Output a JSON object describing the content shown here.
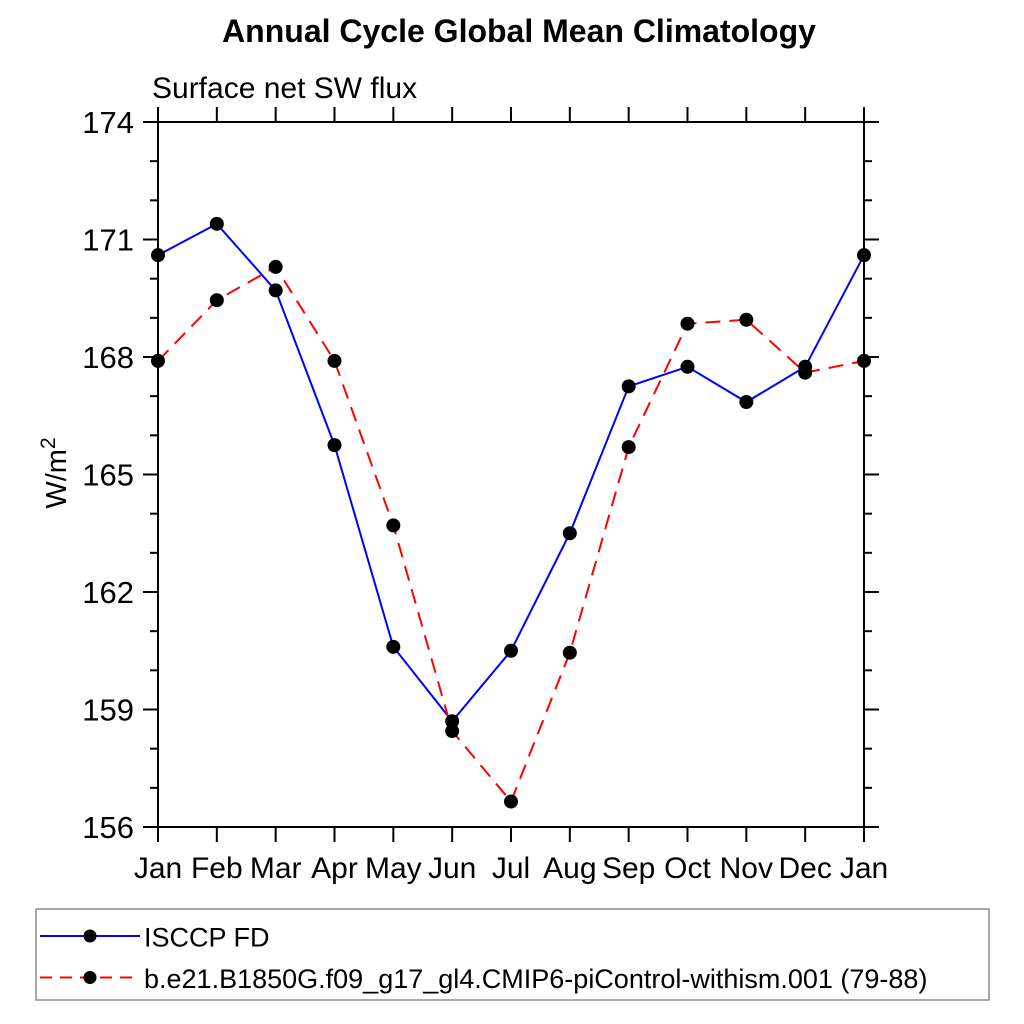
{
  "title": "Annual Cycle Global Mean Climatology",
  "subtitle": "Surface net SW flux",
  "ylabel": {
    "base": "W/m",
    "sup": "2"
  },
  "colors": {
    "axis": "#000000",
    "marker": "#000000",
    "series1": "#0000ff",
    "series2": "#ff0000",
    "legend_border": "#8c8c8c"
  },
  "chart_data": {
    "type": "line",
    "categories": [
      "Jan",
      "Feb",
      "Mar",
      "Apr",
      "May",
      "Jun",
      "Jul",
      "Aug",
      "Sep",
      "Oct",
      "Nov",
      "Dec",
      "Jan"
    ],
    "series": [
      {
        "name": "ISCCP FD",
        "color": "#0000ff",
        "style": "solid",
        "marker": "filled-circle",
        "marker_color": "#000000",
        "values": [
          170.6,
          171.4,
          169.7,
          165.75,
          160.6,
          158.7,
          160.5,
          163.5,
          167.25,
          167.75,
          166.85,
          167.75,
          170.6
        ]
      },
      {
        "name": "b.e21.B1850G.f09_g17_gl4.CMIP6-piControl-withism.001 (79-88)",
        "color": "#ff0000",
        "style": "dashed",
        "marker": "filled-circle",
        "marker_color": "#000000",
        "values": [
          167.9,
          169.45,
          170.3,
          167.9,
          163.7,
          158.45,
          156.65,
          160.45,
          165.7,
          168.85,
          168.95,
          167.6,
          167.9
        ]
      }
    ],
    "ylim": [
      156,
      174
    ],
    "ytick_major_step": 3,
    "ytick_minor_step": 1,
    "ytick_labels": [
      "156",
      "159",
      "162",
      "165",
      "168",
      "171",
      "174"
    ],
    "xlabel": "",
    "ylabel": "W/m2",
    "grid": false,
    "legend_position": "bottom-left-box"
  }
}
